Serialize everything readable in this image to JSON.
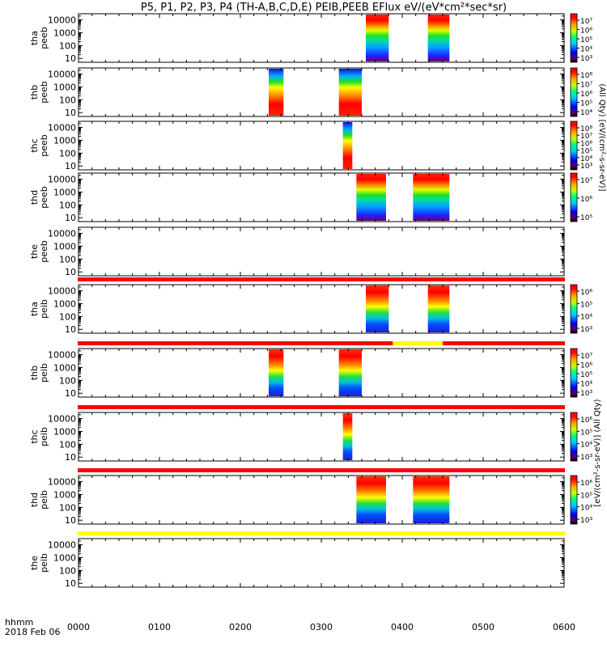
{
  "title": "P5, P1, P2, P3, P4 (TH-A,B,C,D,E) PEIB,PEEB EFlux eV/(eV*cm²*sec*sr)",
  "colors": {
    "red": "#ff0000",
    "yellow": "#ffff00",
    "axis": "#000000",
    "orbit_marker": "#000000"
  },
  "chart_data": {
    "type": "heatmap",
    "x_axis": {
      "label_line1": "hhmm",
      "label_line2": "2018 Feb 06",
      "ticks": [
        "0000",
        "0100",
        "0200",
        "0300",
        "0400",
        "0500",
        "0600"
      ],
      "range_minutes": [
        0,
        360
      ]
    },
    "y_axis": {
      "scale": "log",
      "range_eV": [
        5,
        30000
      ],
      "ticks": [
        "10",
        "100",
        "1000",
        "10000"
      ]
    },
    "colorbar_label_peeb": "(All Qty) [eV/(cm²-s-sr-eV)]",
    "colorbar_label_peib": "[eV/(cm²-s-sr-eV)] (All Qty)",
    "panels": [
      {
        "label": "tha peeb",
        "mode_bar_above": null,
        "colorbar_ticks": [
          "10⁷",
          "10⁶",
          "10⁵",
          "10⁴",
          "10³"
        ],
        "data_intervals_min": [
          [
            213,
            230
          ],
          [
            259,
            275
          ]
        ]
      },
      {
        "label": "thb peeb",
        "mode_bar_above": null,
        "colorbar_ticks": [
          "10⁸",
          "10⁷",
          "10⁶",
          "10⁵",
          "10⁴"
        ],
        "data_intervals_min": [
          [
            141,
            152
          ],
          [
            193,
            210
          ]
        ]
      },
      {
        "label": "thc peeb",
        "mode_bar_above": null,
        "colorbar_ticks": [
          "10⁸",
          "10⁷",
          "10⁶",
          "10⁵",
          "10⁴",
          "10³"
        ],
        "data_intervals_min": [
          [
            196,
            203
          ]
        ]
      },
      {
        "label": "thd peeb",
        "mode_bar_above": null,
        "colorbar_ticks": [
          "10⁷",
          "10⁶",
          "10⁵"
        ],
        "data_intervals_min": [
          [
            206,
            228
          ],
          [
            248,
            275
          ]
        ]
      },
      {
        "label": "the peeb",
        "mode_bar_above": null,
        "colorbar_ticks": [],
        "data_intervals_min": []
      },
      {
        "label": "tha peib",
        "mode_bar_above": "red",
        "colorbar_ticks": [
          "10⁶",
          "10⁵",
          "10⁴",
          "10³"
        ],
        "data_intervals_min": [
          [
            213,
            230
          ],
          [
            259,
            275
          ]
        ]
      },
      {
        "label": "thb peib",
        "mode_bar_above": "red_yellow",
        "colorbar_ticks": [
          "10⁷",
          "10⁶",
          "10⁵",
          "10⁴",
          "10³"
        ],
        "data_intervals_min": [
          [
            141,
            152
          ],
          [
            193,
            210
          ]
        ]
      },
      {
        "label": "thc peib",
        "mode_bar_above": "red",
        "colorbar_ticks": [
          "10⁶",
          "10⁵",
          "10⁴",
          "10³"
        ],
        "data_intervals_min": [
          [
            196,
            203
          ]
        ]
      },
      {
        "label": "thd peib",
        "mode_bar_above": "red",
        "colorbar_ticks": [
          "10⁶",
          "10⁵",
          "10⁴",
          "10³"
        ],
        "data_intervals_min": [
          [
            206,
            228
          ],
          [
            248,
            275
          ]
        ]
      },
      {
        "label": "the peib",
        "mode_bar_above": "yellow",
        "colorbar_ticks": [],
        "data_intervals_min": []
      }
    ],
    "thb_mode_bar_yellow_interval_min": [
      233,
      270
    ]
  }
}
